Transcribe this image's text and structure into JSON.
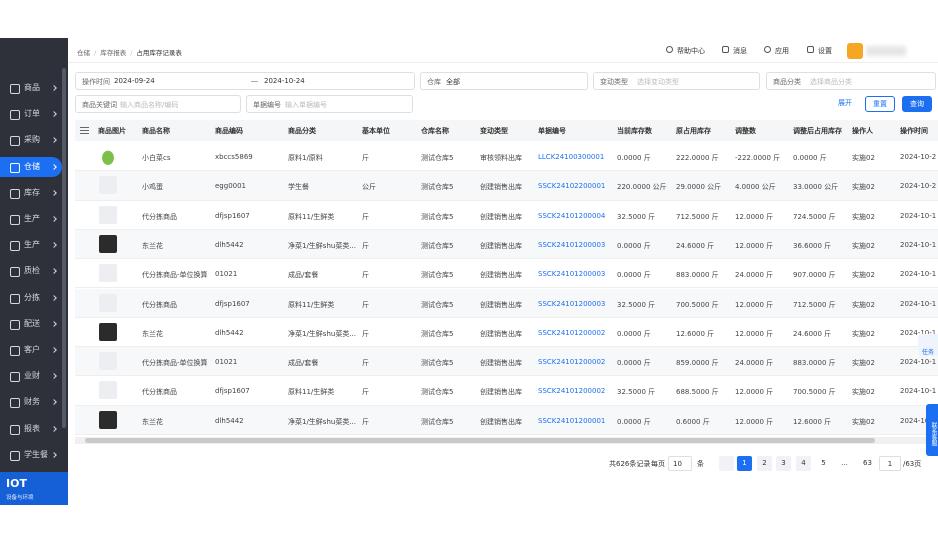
{
  "header": {
    "breadcrumb": [
      "仓储",
      "库存报表",
      "占用库存记录表"
    ],
    "actions": [
      "帮助中心",
      "消息",
      "应用",
      "设置"
    ]
  },
  "sidebar": {
    "items": [
      "商品",
      "订单",
      "采购",
      "仓储",
      "库存",
      "生产",
      "生产",
      "质检",
      "分拣",
      "配送",
      "客户",
      "业财",
      "财务",
      "报表",
      "学生餐"
    ],
    "badge": {
      "title": "IOT",
      "subtitle": "设备与环境"
    }
  },
  "filters": {
    "time": {
      "label": "操作时间",
      "start": "2024-09-24",
      "end": "2024-10-24"
    },
    "warehouse": {
      "label": "仓库",
      "value": "全部"
    },
    "change_type": {
      "label": "变动类型",
      "placeholder": "选择变动类型"
    },
    "category": {
      "label": "商品分类",
      "placeholder": "选择商品分类"
    },
    "keyword": {
      "label": "商品关键词",
      "placeholder": "输入商品名称/编码"
    },
    "doc_no": {
      "label": "单据编号",
      "placeholder": "输入单据编号"
    },
    "buttons": {
      "expand": "展开",
      "reset": "重置",
      "search": "查询"
    }
  },
  "table": {
    "columns": [
      "商品图片",
      "商品名称",
      "商品编码",
      "商品分类",
      "基本单位",
      "仓库名称",
      "变动类型",
      "单据编号",
      "当前库存数",
      "原占用库存",
      "调整数",
      "调整后占用库存",
      "操作人",
      "操作时间"
    ],
    "rows": [
      [
        "小白菜cs",
        "xbccs5869",
        "原料1/原料",
        "斤",
        "测试仓库5",
        "审核领料出库",
        "LLCK24100300001",
        "0.0000 斤",
        "222.0000 斤",
        "-222.0000 斤",
        "0.0000 斤",
        "实施02",
        "2024-10-2"
      ],
      [
        "小鸡蛋",
        "egg0001",
        "学生餐",
        "公斤",
        "测试仓库5",
        "创建销售出库",
        "SSCK24102200001",
        "220.0000 公斤",
        "29.0000 公斤",
        "4.0000 公斤",
        "33.0000 公斤",
        "实施02",
        "2024-10-2"
      ],
      [
        "代分拣商品",
        "dfjsp1607",
        "原料11/生鲜类",
        "斤",
        "测试仓库5",
        "创建销售出库",
        "SSCK24101200004",
        "32.5000 斤",
        "712.5000 斤",
        "12.0000 斤",
        "724.5000 斤",
        "实施02",
        "2024-10-1"
      ],
      [
        "东兰花",
        "dlh5442",
        "净菜1/生鲜shu菜类...",
        "斤",
        "测试仓库5",
        "创建销售出库",
        "SSCK24101200003",
        "0.0000 斤",
        "24.6000 斤",
        "12.0000 斤",
        "36.6000 斤",
        "实施02",
        "2024-10-1"
      ],
      [
        "代分拣商品-单位换算",
        "01021",
        "成品/套餐",
        "斤",
        "测试仓库5",
        "创建销售出库",
        "SSCK24101200003",
        "0.0000 斤",
        "883.0000 斤",
        "24.0000 斤",
        "907.0000 斤",
        "实施02",
        "2024-10-1"
      ],
      [
        "代分拣商品",
        "dfjsp1607",
        "原料11/生鲜类",
        "斤",
        "测试仓库5",
        "创建销售出库",
        "SSCK24101200003",
        "32.5000 斤",
        "700.5000 斤",
        "12.0000 斤",
        "712.5000 斤",
        "实施02",
        "2024-10-1"
      ],
      [
        "东兰花",
        "dlh5442",
        "净菜1/生鲜shu菜类...",
        "斤",
        "测试仓库5",
        "创建销售出库",
        "SSCK24101200002",
        "0.0000 斤",
        "12.6000 斤",
        "12.0000 斤",
        "24.6000 斤",
        "实施02",
        "2024-10-1"
      ],
      [
        "代分拣商品-单位换算",
        "01021",
        "成品/套餐",
        "斤",
        "测试仓库5",
        "创建销售出库",
        "SSCK24101200002",
        "0.0000 斤",
        "859.0000 斤",
        "24.0000 斤",
        "883.0000 斤",
        "实施02",
        "2024-10-1"
      ],
      [
        "代分拣商品",
        "dfjsp1607",
        "原料11/生鲜类",
        "斤",
        "测试仓库5",
        "创建销售出库",
        "SSCK24101200002",
        "32.5000 斤",
        "688.5000 斤",
        "12.0000 斤",
        "700.5000 斤",
        "实施02",
        "2024-10-1"
      ],
      [
        "东兰花",
        "dlh5442",
        "净菜1/生鲜shu菜类...",
        "斤",
        "测试仓库5",
        "创建销售出库",
        "SSCK24101200001",
        "0.0000 斤",
        "0.6000 斤",
        "12.0000 斤",
        "12.6000 斤",
        "实施02",
        "2024-10-1"
      ]
    ]
  },
  "pagination": {
    "total": "共626条记录",
    "per_page_label": "每页",
    "per_page": "10",
    "unit": "条",
    "pages": [
      "1",
      "2",
      "3",
      "4",
      "5",
      "...",
      "63"
    ],
    "jump": "1",
    "page_count": "/63页"
  },
  "float": {
    "task": "任务",
    "service": "联系客服"
  }
}
